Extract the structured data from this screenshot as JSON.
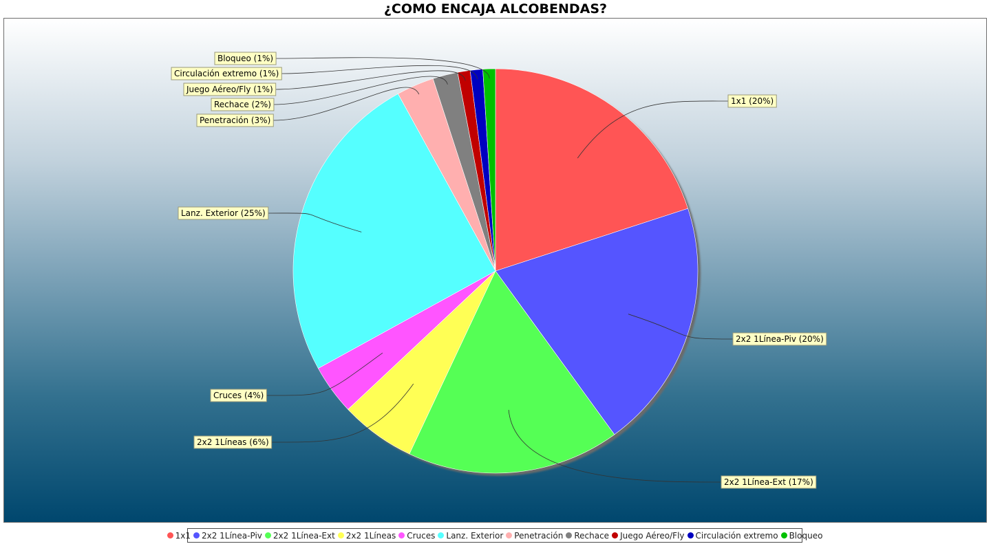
{
  "chart_data": {
    "type": "pie",
    "title": "¿COMO ENCAJA ALCOBENDAS?",
    "slices": [
      {
        "name": "1x1",
        "value": 20,
        "color": "#ff5555",
        "label": "1x1 (20%)"
      },
      {
        "name": "2x2 1Línea-Piv",
        "value": 20,
        "color": "#5555ff",
        "label": "2x2 1Línea-Piv (20%)"
      },
      {
        "name": "2x2 1Línea-Ext",
        "value": 17,
        "color": "#55ff55",
        "label": "2x2 1Línea-Ext (17%)"
      },
      {
        "name": "2x2 1Líneas",
        "value": 6,
        "color": "#ffff55",
        "label": "2x2 1Líneas (6%)"
      },
      {
        "name": "Cruces",
        "value": 4,
        "color": "#ff55ff",
        "label": "Cruces (4%)"
      },
      {
        "name": "Lanz. Exterior",
        "value": 25,
        "color": "#55ffff",
        "label": "Lanz. Exterior (25%)"
      },
      {
        "name": "Penetración",
        "value": 3,
        "color": "#ffafaf",
        "label": "Penetración (3%)"
      },
      {
        "name": "Rechace",
        "value": 2,
        "color": "#808080",
        "label": "Rechace (2%)"
      },
      {
        "name": "Juego Aéreo/Fly",
        "value": 1,
        "color": "#c00000",
        "label": "Juego Aéreo/Fly (1%)"
      },
      {
        "name": "Circulación extremo",
        "value": 1,
        "color": "#0000c0",
        "label": "Circulación extremo (1%)"
      },
      {
        "name": "Bloqueo",
        "value": 1,
        "color": "#00c000",
        "label": "Bloqueo (1%)"
      }
    ],
    "legend_position": "bottom",
    "start_angle_deg": 90,
    "direction": "clockwise"
  }
}
